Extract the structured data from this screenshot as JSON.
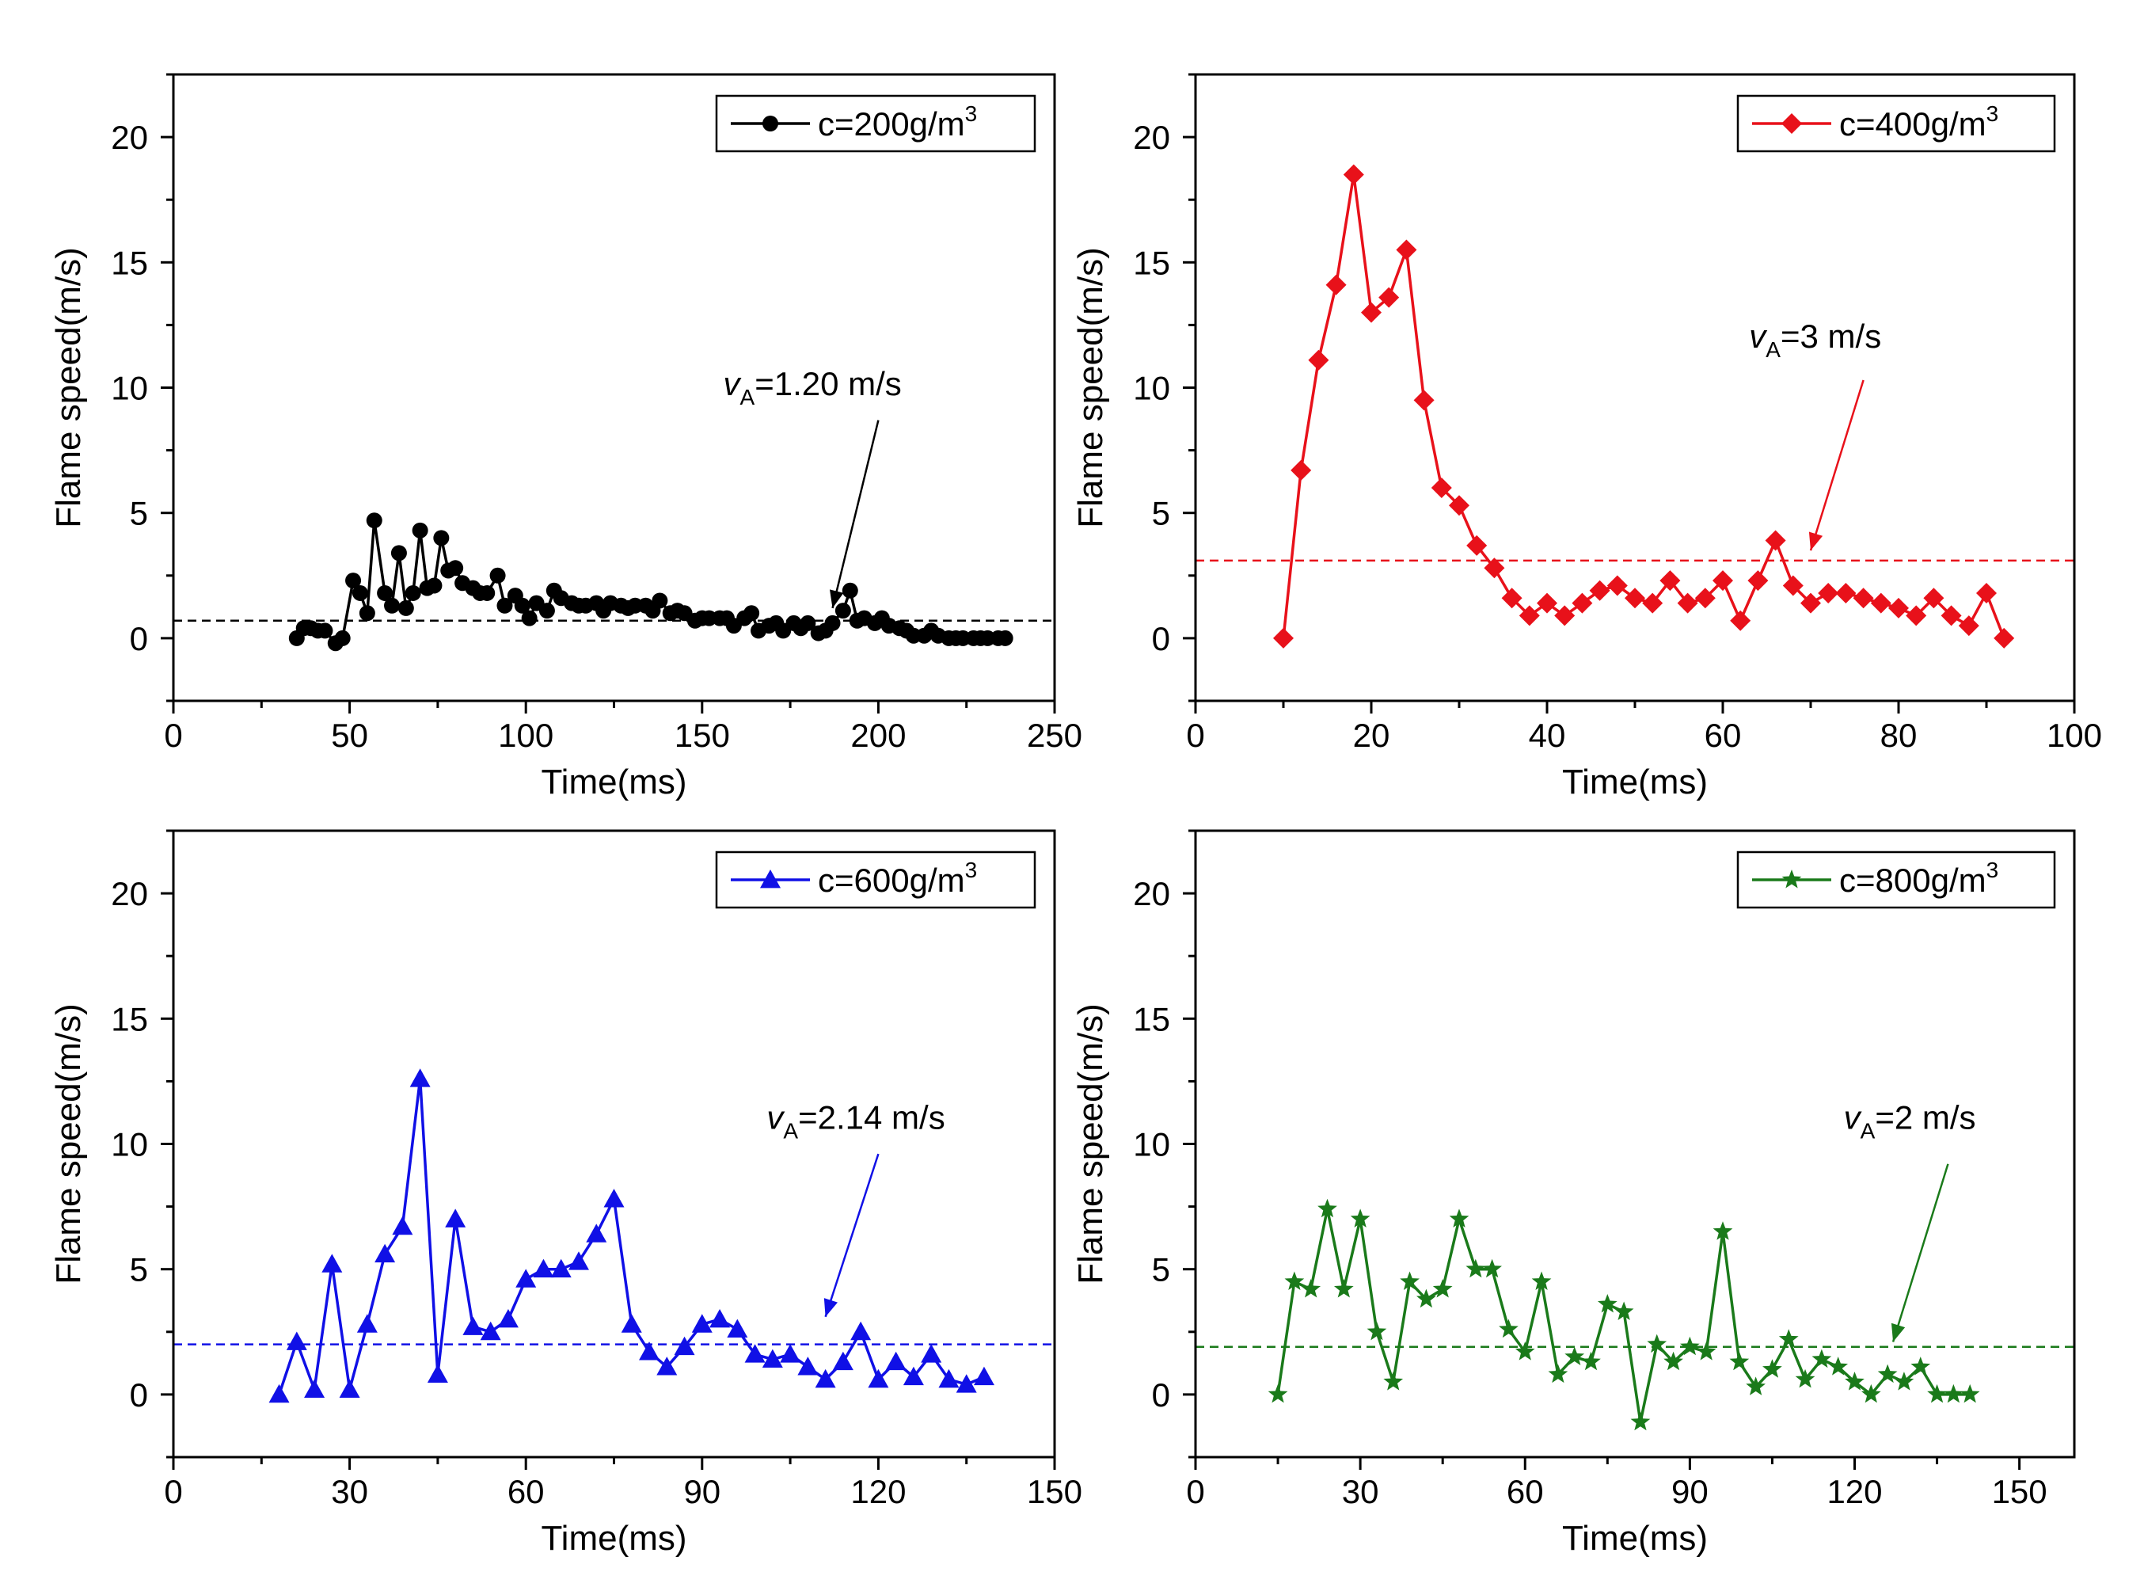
{
  "chart_data": [
    {
      "type": "line",
      "xlabel": "Time(ms)",
      "ylabel": "Flame speed(m/s)",
      "xlim": [
        0,
        250
      ],
      "ylim": [
        -2.5,
        22.5
      ],
      "xticks": [
        0,
        50,
        100,
        150,
        200,
        250
      ],
      "yticks": [
        0,
        5,
        10,
        15,
        20
      ],
      "legend_position": "top-right",
      "series": [
        {
          "name": "c=200g/m",
          "superscript": "3",
          "color": "#000000",
          "marker": "circle",
          "x": [
            35,
            37,
            39,
            41,
            43,
            46,
            48,
            51,
            53,
            55,
            57,
            60,
            62,
            64,
            66,
            68,
            70,
            72,
            74,
            76,
            78,
            80,
            82,
            85,
            87,
            89,
            92,
            94,
            97,
            99,
            101,
            103,
            106,
            108,
            110,
            113,
            115,
            117,
            120,
            122,
            124,
            127,
            129,
            131,
            134,
            136,
            138,
            141,
            143,
            145,
            148,
            150,
            152,
            155,
            157,
            159,
            162,
            164,
            166,
            169,
            171,
            173,
            176,
            178,
            180,
            183,
            185,
            187,
            190,
            192,
            194,
            196,
            199,
            201,
            203,
            206,
            208,
            210,
            213,
            215,
            217,
            220,
            222,
            224,
            227,
            229,
            231,
            234,
            236
          ],
          "y": [
            0.0,
            0.4,
            0.4,
            0.3,
            0.3,
            -0.2,
            0.0,
            2.3,
            1.8,
            1.0,
            4.7,
            1.8,
            1.3,
            3.4,
            1.2,
            1.8,
            4.3,
            2.0,
            2.1,
            4.0,
            2.7,
            2.8,
            2.2,
            2.0,
            1.8,
            1.8,
            2.5,
            1.3,
            1.7,
            1.3,
            0.8,
            1.4,
            1.1,
            1.9,
            1.6,
            1.4,
            1.3,
            1.3,
            1.4,
            1.1,
            1.4,
            1.3,
            1.2,
            1.3,
            1.3,
            1.1,
            1.5,
            1.0,
            1.1,
            1.0,
            0.7,
            0.8,
            0.8,
            0.8,
            0.8,
            0.5,
            0.8,
            1.0,
            0.3,
            0.5,
            0.6,
            0.3,
            0.6,
            0.4,
            0.6,
            0.2,
            0.3,
            0.6,
            1.1,
            1.9,
            0.7,
            0.8,
            0.6,
            0.8,
            0.5,
            0.4,
            0.3,
            0.1,
            0.1,
            0.3,
            0.1,
            0.0,
            0.0,
            0.0,
            0.0,
            0.0,
            0.0,
            0.0,
            0.0
          ]
        }
      ],
      "reference_line": {
        "y": 0.7,
        "style": "dashed"
      },
      "annotation": {
        "var": "v",
        "sub": "A",
        "text": "=1.20 m/s",
        "label_x": 156,
        "label_y": 9.7,
        "arrow_from": [
          200,
          8.7
        ],
        "arrow_to": [
          187,
          1.2
        ]
      }
    },
    {
      "type": "line",
      "xlabel": "Time(ms)",
      "ylabel": "Flame speed(m/s)",
      "xlim": [
        0,
        100
      ],
      "ylim": [
        -2.5,
        22.5
      ],
      "xticks": [
        0,
        20,
        40,
        60,
        80,
        100
      ],
      "yticks": [
        0,
        5,
        10,
        15,
        20
      ],
      "legend_position": "top-right",
      "series": [
        {
          "name": "c=400g/m",
          "superscript": "3",
          "color": "#e8111a",
          "marker": "diamond",
          "x": [
            10,
            12,
            14,
            16,
            18,
            20,
            22,
            24,
            26,
            28,
            30,
            32,
            34,
            36,
            38,
            40,
            42,
            44,
            46,
            48,
            50,
            52,
            54,
            56,
            58,
            60,
            62,
            64,
            66,
            68,
            70,
            72,
            74,
            76,
            78,
            80,
            82,
            84,
            86,
            88,
            90,
            92
          ],
          "y": [
            0.0,
            6.7,
            11.1,
            14.1,
            18.5,
            13.0,
            13.6,
            15.5,
            9.5,
            6.0,
            5.3,
            3.7,
            2.8,
            1.6,
            0.9,
            1.4,
            0.9,
            1.4,
            1.9,
            2.1,
            1.6,
            1.4,
            2.3,
            1.4,
            1.6,
            2.3,
            0.7,
            2.3,
            3.9,
            2.1,
            1.4,
            1.8,
            1.8,
            1.6,
            1.4,
            1.2,
            0.9,
            1.6,
            0.9,
            0.5,
            1.8,
            0.0
          ]
        }
      ],
      "reference_line": {
        "y": 3.1,
        "style": "dashed"
      },
      "annotation": {
        "var": "v",
        "sub": "A",
        "text": "=3 m/s",
        "label_x": 63,
        "label_y": 11.6,
        "arrow_from": [
          76,
          10.3
        ],
        "arrow_to": [
          70,
          3.5
        ]
      }
    },
    {
      "type": "line",
      "xlabel": "Time(ms)",
      "ylabel": "Flame speed(m/s)",
      "xlim": [
        0,
        150
      ],
      "ylim": [
        -2.5,
        22.5
      ],
      "xticks": [
        0,
        30,
        60,
        90,
        120,
        150
      ],
      "yticks": [
        0,
        5,
        10,
        15,
        20
      ],
      "legend_position": "top-right",
      "series": [
        {
          "name": "c=600g/m",
          "superscript": "3",
          "color": "#1010e6",
          "marker": "triangle",
          "x": [
            18,
            21,
            24,
            27,
            30,
            33,
            36,
            39,
            42,
            45,
            48,
            51,
            54,
            57,
            60,
            63,
            66,
            69,
            72,
            75,
            78,
            81,
            84,
            87,
            90,
            93,
            96,
            99,
            102,
            105,
            108,
            111,
            114,
            117,
            120,
            123,
            126,
            129,
            132,
            135,
            138
          ],
          "y": [
            0.0,
            2.1,
            0.2,
            5.2,
            0.2,
            2.8,
            5.6,
            6.7,
            12.6,
            0.8,
            7.0,
            2.7,
            2.5,
            3.0,
            4.6,
            5.0,
            5.0,
            5.3,
            6.4,
            7.8,
            2.8,
            1.7,
            1.1,
            1.9,
            2.8,
            3.0,
            2.6,
            1.6,
            1.4,
            1.6,
            1.1,
            0.6,
            1.3,
            2.5,
            0.6,
            1.3,
            0.7,
            1.6,
            0.6,
            0.4,
            0.7
          ]
        }
      ],
      "reference_line": {
        "y": 2.0,
        "style": "dashed"
      },
      "annotation": {
        "var": "v",
        "sub": "A",
        "text": "=2.14 m/s",
        "label_x": 101,
        "label_y": 10.6,
        "arrow_from": [
          120,
          9.6
        ],
        "arrow_to": [
          111,
          3.1
        ]
      }
    },
    {
      "type": "line",
      "xlabel": "Time(ms)",
      "ylabel": "Flame speed(m/s)",
      "xlim": [
        0,
        160
      ],
      "ylim": [
        -2.5,
        22.5
      ],
      "xticks": [
        0,
        30,
        60,
        90,
        120,
        150
      ],
      "yticks": [
        0,
        5,
        10,
        15,
        20
      ],
      "legend_position": "top-right",
      "series": [
        {
          "name": "c=800g/m",
          "superscript": "3",
          "color": "#1a7a1a",
          "marker": "star",
          "x": [
            15,
            18,
            21,
            24,
            27,
            30,
            33,
            36,
            39,
            42,
            45,
            48,
            51,
            54,
            57,
            60,
            63,
            66,
            69,
            72,
            75,
            78,
            81,
            84,
            87,
            90,
            93,
            96,
            99,
            102,
            105,
            108,
            111,
            114,
            117,
            120,
            123,
            126,
            129,
            132,
            135,
            138,
            141
          ],
          "y": [
            0.0,
            4.5,
            4.2,
            7.4,
            4.2,
            7.0,
            2.5,
            0.5,
            4.5,
            3.8,
            4.2,
            7.0,
            5.0,
            5.0,
            2.6,
            1.7,
            4.5,
            0.8,
            1.5,
            1.3,
            3.6,
            3.3,
            -1.1,
            2.0,
            1.3,
            1.9,
            1.7,
            6.5,
            1.3,
            0.3,
            1.0,
            2.2,
            0.6,
            1.4,
            1.1,
            0.5,
            0.0,
            0.8,
            0.5,
            1.1,
            0.0,
            0.0,
            0.0
          ]
        }
      ],
      "reference_line": {
        "y": 1.9,
        "style": "dashed"
      },
      "annotation": {
        "var": "v",
        "sub": "A",
        "text": "=2 m/s",
        "label_x": 118,
        "label_y": 10.6,
        "arrow_from": [
          137,
          9.2
        ],
        "arrow_to": [
          127,
          2.1
        ]
      }
    }
  ]
}
